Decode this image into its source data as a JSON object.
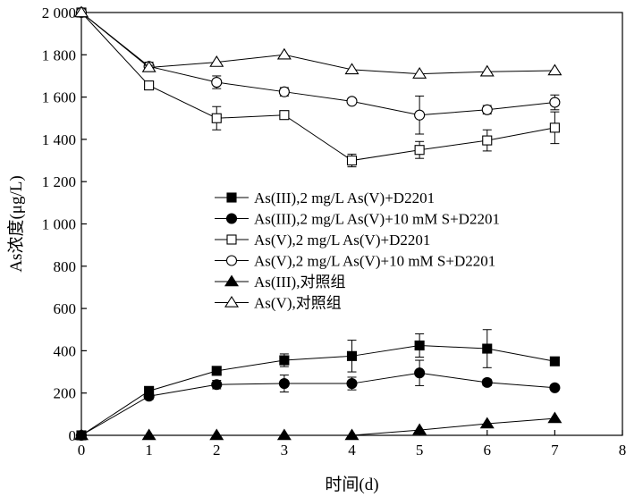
{
  "chart_data": {
    "type": "line",
    "xlabel": "时间(d)",
    "ylabel": "As浓度(μg/L)",
    "xlim": [
      0,
      8
    ],
    "ylim": [
      0,
      2000
    ],
    "x_ticks": [
      0,
      1,
      2,
      3,
      4,
      5,
      6,
      7,
      8
    ],
    "y_ticks": [
      0,
      200,
      400,
      600,
      800,
      1000,
      1200,
      1400,
      1600,
      1800,
      2000
    ],
    "y_tick_labels": [
      "0",
      "200",
      "400",
      "600",
      "800",
      "1 000",
      "1 200",
      "1 400",
      "1 600",
      "1 800",
      "2 000"
    ],
    "grid": false,
    "legend_position": "center-left",
    "series": [
      {
        "name": "As(III),2 mg/L As(V)+D2201",
        "marker": "square-filled",
        "x": [
          0,
          1,
          2,
          3,
          4,
          5,
          6,
          7
        ],
        "y": [
          0,
          210,
          305,
          355,
          375,
          425,
          410,
          350
        ],
        "err": [
          0,
          15,
          20,
          30,
          75,
          55,
          90,
          15
        ]
      },
      {
        "name": "As(III),2 mg/L As(V)+10 mM S+D2201",
        "marker": "circle-filled",
        "x": [
          0,
          1,
          2,
          3,
          4,
          5,
          6,
          7
        ],
        "y": [
          0,
          185,
          240,
          245,
          245,
          295,
          250,
          225
        ],
        "err": [
          0,
          15,
          20,
          40,
          30,
          60,
          15,
          10
        ]
      },
      {
        "name": "As(V),2 mg/L As(V)+D2201",
        "marker": "square-open",
        "x": [
          0,
          1,
          2,
          3,
          4,
          5,
          6,
          7
        ],
        "y": [
          2000,
          1655,
          1500,
          1515,
          1300,
          1350,
          1395,
          1455
        ],
        "err": [
          0,
          15,
          55,
          20,
          30,
          40,
          50,
          75
        ]
      },
      {
        "name": "As(V),2 mg/L As(V)+10 mM S+D2201",
        "marker": "circle-open",
        "x": [
          0,
          1,
          2,
          3,
          4,
          5,
          6,
          7
        ],
        "y": [
          2000,
          1745,
          1670,
          1625,
          1580,
          1515,
          1540,
          1575
        ],
        "err": [
          0,
          20,
          30,
          20,
          0,
          90,
          20,
          35
        ]
      },
      {
        "name": "As(III),对照组",
        "marker": "triangle-filled",
        "x": [
          0,
          1,
          2,
          3,
          4,
          5,
          6,
          7
        ],
        "y": [
          0,
          0,
          0,
          0,
          0,
          25,
          55,
          80
        ],
        "err": [
          0,
          0,
          0,
          0,
          0,
          0,
          0,
          0
        ]
      },
      {
        "name": "As(V),对照组",
        "marker": "triangle-open",
        "x": [
          0,
          1,
          2,
          3,
          4,
          5,
          6,
          7
        ],
        "y": [
          2000,
          1740,
          1765,
          1800,
          1730,
          1710,
          1720,
          1725
        ],
        "err": [
          0,
          10,
          0,
          0,
          0,
          0,
          0,
          0
        ]
      }
    ]
  }
}
